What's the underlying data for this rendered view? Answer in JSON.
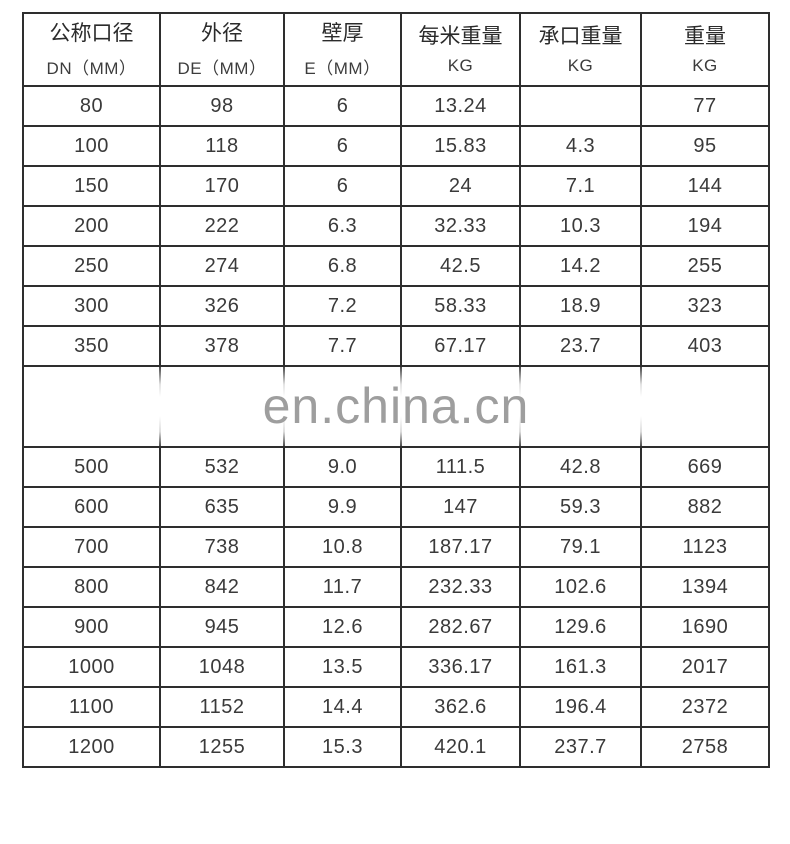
{
  "watermark": {
    "text": "en.china.cn",
    "color": "#9e9e9e"
  },
  "table": {
    "border_color": "#2e2e2e",
    "columns": [
      {
        "title_cn": "公称口径",
        "subtitle": "DN（MM）"
      },
      {
        "title_cn": "外径",
        "subtitle": "DE（MM）"
      },
      {
        "title_cn": "壁厚",
        "subtitle": "E（MM）"
      },
      {
        "title_cn": "每米重量",
        "subtitle": "KG"
      },
      {
        "title_cn": "承口重量",
        "subtitle": "KG"
      },
      {
        "title_cn": "重量",
        "subtitle": "KG"
      }
    ],
    "rows_above_watermark": [
      [
        "80",
        "98",
        "6",
        "13.24",
        "",
        "77"
      ],
      [
        "100",
        "118",
        "6",
        "15.83",
        "4.3",
        "95"
      ],
      [
        "150",
        "170",
        "6",
        "24",
        "7.1",
        "144"
      ],
      [
        "200",
        "222",
        "6.3",
        "32.33",
        "10.3",
        "194"
      ],
      [
        "250",
        "274",
        "6.8",
        "42.5",
        "14.2",
        "255"
      ],
      [
        "300",
        "326",
        "7.2",
        "58.33",
        "18.9",
        "323"
      ],
      [
        "350",
        "378",
        "7.7",
        "67.17",
        "23.7",
        "403"
      ]
    ],
    "rows_below_watermark": [
      [
        "500",
        "532",
        "9.0",
        "111.5",
        "42.8",
        "669"
      ],
      [
        "600",
        "635",
        "9.9",
        "147",
        "59.3",
        "882"
      ],
      [
        "700",
        "738",
        "10.8",
        "187.17",
        "79.1",
        "1123"
      ],
      [
        "800",
        "842",
        "11.7",
        "232.33",
        "102.6",
        "1394"
      ],
      [
        "900",
        "945",
        "12.6",
        "282.67",
        "129.6",
        "1690"
      ],
      [
        "1000",
        "1048",
        "13.5",
        "336.17",
        "161.3",
        "2017"
      ],
      [
        "1100",
        "1152",
        "14.4",
        "362.6",
        "196.4",
        "2372"
      ],
      [
        "1200",
        "1255",
        "15.3",
        "420.1",
        "237.7",
        "2758"
      ]
    ]
  },
  "chart_data": {
    "type": "table",
    "columns": [
      "公称口径 DN（MM）",
      "外径 DE（MM）",
      "壁厚 E（MM）",
      "每米重量 KG",
      "承口重量 KG",
      "重量 KG"
    ],
    "rows": [
      [
        80,
        98,
        6,
        13.24,
        null,
        77
      ],
      [
        100,
        118,
        6,
        15.83,
        4.3,
        95
      ],
      [
        150,
        170,
        6,
        24,
        7.1,
        144
      ],
      [
        200,
        222,
        6.3,
        32.33,
        10.3,
        194
      ],
      [
        250,
        274,
        6.8,
        42.5,
        14.2,
        255
      ],
      [
        300,
        326,
        7.2,
        58.33,
        18.9,
        323
      ],
      [
        350,
        378,
        7.7,
        67.17,
        23.7,
        403
      ],
      [
        500,
        532,
        9.0,
        111.5,
        42.8,
        669
      ],
      [
        600,
        635,
        9.9,
        147,
        59.3,
        882
      ],
      [
        700,
        738,
        10.8,
        187.17,
        79.1,
        1123
      ],
      [
        800,
        842,
        11.7,
        232.33,
        102.6,
        1394
      ],
      [
        900,
        945,
        12.6,
        282.67,
        129.6,
        1690
      ],
      [
        1000,
        1048,
        13.5,
        336.17,
        161.3,
        2017
      ],
      [
        1100,
        1152,
        14.4,
        362.6,
        196.4,
        2372
      ],
      [
        1200,
        1255,
        15.3,
        420.1,
        237.7,
        2758
      ]
    ],
    "watermark": "en.china.cn",
    "notes": "rows between 350 and 500 are obscured by the en.china.cn watermark band"
  }
}
